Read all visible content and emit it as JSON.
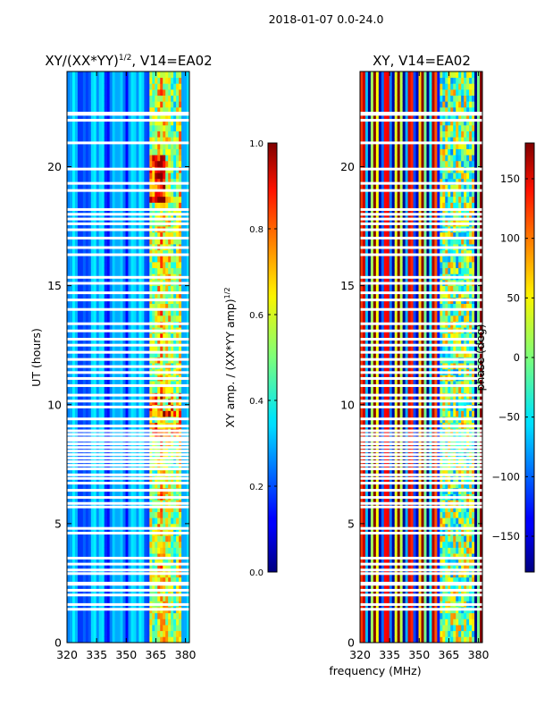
{
  "figure": {
    "suptitle": "2018-01-07 0.0-24.0",
    "xlabel_shared": "frequency (MHz)"
  },
  "chart_data": [
    {
      "type": "heatmap",
      "title": "XY/(XX*YY)^1/2, V14=EA02",
      "title_main": "XY/(XX*YY)",
      "title_exp": "1/2",
      "title_tail": ", V14=EA02",
      "xlabel": "",
      "ylabel": "UT (hours)",
      "xlim": [
        320,
        382
      ],
      "ylim": [
        0,
        24
      ],
      "xticks": [
        320,
        335,
        350,
        365,
        380
      ],
      "yticks": [
        0,
        5,
        10,
        15,
        20
      ],
      "quantity": "amplitude",
      "colorbar": {
        "label": "XY amp. / (XX*YY amp)^1/2",
        "label_main": "XY amp. / (XX*YY amp)",
        "label_exp": "1/2",
        "range": [
          0.0,
          1.0
        ],
        "ticks": [
          "0.0",
          "0.2",
          "0.4",
          "0.6",
          "0.8",
          "1.0"
        ],
        "tick_values": [
          0.0,
          0.2,
          0.4,
          0.6,
          0.8,
          1.0
        ]
      }
    },
    {
      "type": "heatmap",
      "title": "XY, V14=EA02",
      "xlabel": "frequency (MHz)",
      "ylabel": "",
      "xlim": [
        320,
        382
      ],
      "ylim": [
        0,
        24
      ],
      "xticks": [
        320,
        335,
        350,
        365,
        380
      ],
      "yticks": [
        0,
        5,
        10,
        15,
        20
      ],
      "quantity": "phase",
      "colorbar": {
        "label": "phase (deg)",
        "range": [
          -180,
          180
        ],
        "ticks": [
          "−150",
          "−100",
          "−50",
          "0",
          "50",
          "100",
          "150"
        ],
        "tick_values": [
          -150,
          -100,
          -50,
          0,
          50,
          100,
          150
        ]
      }
    }
  ],
  "flagged_hours": [
    1.4,
    1.6,
    2.0,
    2.2,
    2.45,
    2.5,
    2.9,
    3.05,
    3.3,
    3.55,
    4.6,
    4.8,
    5.7,
    5.85,
    6.1,
    6.4,
    6.7,
    6.9,
    7.05,
    7.3,
    7.45,
    7.6,
    7.75,
    7.9,
    8.05,
    8.2,
    8.35,
    8.5,
    8.6,
    8.75,
    8.9,
    9.1,
    9.4,
    9.9,
    10.15,
    10.4,
    10.8,
    11.1,
    11.35,
    11.6,
    11.9,
    12.2,
    12.5,
    12.75,
    13.1,
    13.4,
    14.0,
    14.4,
    14.7,
    15.1,
    15.35,
    16.3,
    16.6,
    17.0,
    17.35,
    17.6,
    17.8,
    18.0,
    18.2,
    19.0,
    19.3,
    19.9,
    21.0,
    21.95,
    22.2,
    22.25
  ]
}
